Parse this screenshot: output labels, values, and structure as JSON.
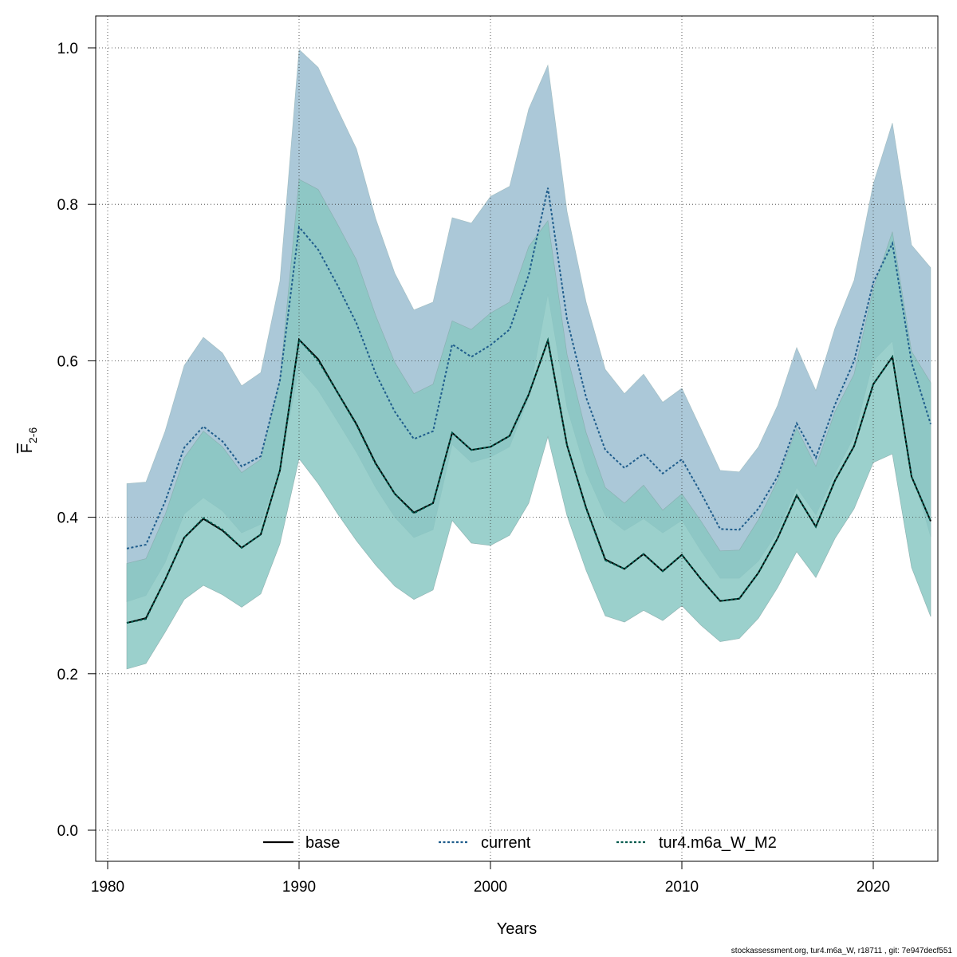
{
  "chart_data": {
    "type": "line",
    "title": "",
    "xlabel": "Years",
    "ylabel_main": "F",
    "ylabel_sub": "2-6",
    "xlim": [
      1980,
      2024
    ],
    "ylim": [
      0.0,
      1.0
    ],
    "x_ticks": [
      1980,
      1990,
      2000,
      2010,
      2020
    ],
    "x_tick_labels": [
      "1980",
      "1990",
      "2000",
      "2010",
      "2020"
    ],
    "y_ticks": [
      0.0,
      0.2,
      0.4,
      0.6,
      0.8,
      1.0
    ],
    "y_tick_labels": [
      "0.0",
      "0.2",
      "0.4",
      "0.6",
      "0.8",
      "1.0"
    ],
    "grid": true,
    "legend_position": "bottom",
    "years": [
      1981,
      1982,
      1983,
      1984,
      1985,
      1986,
      1987,
      1988,
      1989,
      1990,
      1991,
      1992,
      1993,
      1994,
      1995,
      1996,
      1997,
      1998,
      1999,
      2000,
      2001,
      2002,
      2003,
      2004,
      2005,
      2006,
      2007,
      2008,
      2009,
      2010,
      2011,
      2012,
      2013,
      2014,
      2015,
      2016,
      2017,
      2018,
      2019,
      2020,
      2021,
      2022,
      2023
    ],
    "series": [
      {
        "name": "base",
        "color": "#000000",
        "dash": "solid",
        "band_color": "#a6cdd8",
        "values": [
          0.265,
          0.271,
          0.32,
          0.374,
          0.398,
          0.383,
          0.361,
          0.378,
          0.46,
          0.627,
          0.602,
          0.56,
          0.519,
          0.469,
          0.43,
          0.406,
          0.418,
          0.508,
          0.486,
          0.49,
          0.504,
          0.557,
          0.626,
          0.492,
          0.412,
          0.346,
          0.334,
          0.353,
          0.331,
          0.352,
          0.321,
          0.293,
          0.296,
          0.329,
          0.373,
          0.428,
          0.388,
          0.447,
          0.491,
          0.57,
          0.605,
          0.452,
          0.395
        ],
        "lower": [
          0.206,
          0.213,
          0.253,
          0.295,
          0.313,
          0.301,
          0.285,
          0.302,
          0.366,
          0.475,
          0.443,
          0.405,
          0.37,
          0.339,
          0.312,
          0.295,
          0.307,
          0.396,
          0.367,
          0.364,
          0.377,
          0.418,
          0.503,
          0.402,
          0.332,
          0.274,
          0.266,
          0.281,
          0.268,
          0.287,
          0.262,
          0.241,
          0.245,
          0.271,
          0.31,
          0.356,
          0.323,
          0.373,
          0.411,
          0.47,
          0.481,
          0.336,
          0.273
        ],
        "upper": [
          0.341,
          0.347,
          0.403,
          0.476,
          0.51,
          0.49,
          0.457,
          0.474,
          0.575,
          0.832,
          0.819,
          0.775,
          0.729,
          0.658,
          0.598,
          0.558,
          0.57,
          0.651,
          0.64,
          0.661,
          0.675,
          0.746,
          0.779,
          0.608,
          0.508,
          0.438,
          0.418,
          0.441,
          0.409,
          0.43,
          0.395,
          0.357,
          0.358,
          0.397,
          0.447,
          0.514,
          0.465,
          0.535,
          0.583,
          0.692,
          0.765,
          0.612,
          0.572
        ]
      },
      {
        "name": "current",
        "color": "#1f5d8c",
        "dash": "dotted",
        "band_color": "#a6c5d6",
        "values": [
          0.36,
          0.365,
          0.42,
          0.489,
          0.516,
          0.497,
          0.465,
          0.478,
          0.575,
          0.771,
          0.742,
          0.697,
          0.648,
          0.584,
          0.535,
          0.5,
          0.51,
          0.621,
          0.605,
          0.62,
          0.64,
          0.71,
          0.821,
          0.653,
          0.553,
          0.486,
          0.463,
          0.481,
          0.456,
          0.474,
          0.431,
          0.385,
          0.384,
          0.411,
          0.452,
          0.52,
          0.476,
          0.544,
          0.6,
          0.7,
          0.75,
          0.598,
          0.519
        ],
        "lower": [
          0.292,
          0.3,
          0.342,
          0.404,
          0.425,
          0.408,
          0.38,
          0.391,
          0.465,
          0.59,
          0.562,
          0.523,
          0.483,
          0.438,
          0.4,
          0.374,
          0.384,
          0.493,
          0.47,
          0.477,
          0.49,
          0.553,
          0.685,
          0.54,
          0.457,
          0.402,
          0.383,
          0.398,
          0.38,
          0.396,
          0.357,
          0.322,
          0.322,
          0.344,
          0.381,
          0.438,
          0.403,
          0.456,
          0.503,
          0.6,
          0.625,
          0.46,
          0.375
        ],
        "upper": [
          0.443,
          0.445,
          0.51,
          0.594,
          0.63,
          0.61,
          0.568,
          0.585,
          0.702,
          0.998,
          0.975,
          0.922,
          0.871,
          0.782,
          0.712,
          0.665,
          0.675,
          0.783,
          0.776,
          0.81,
          0.823,
          0.922,
          0.978,
          0.791,
          0.675,
          0.589,
          0.558,
          0.583,
          0.547,
          0.565,
          0.513,
          0.46,
          0.458,
          0.49,
          0.543,
          0.617,
          0.562,
          0.642,
          0.703,
          0.826,
          0.904,
          0.748,
          0.719
        ]
      },
      {
        "name": "tur4.m6a_W_M2",
        "color": "#00594c",
        "dash": "dotted",
        "band_color": "#7fc5bb",
        "values": [
          0.265,
          0.27,
          0.32,
          0.374,
          0.399,
          0.384,
          0.361,
          0.378,
          0.46,
          0.627,
          0.6,
          0.56,
          0.518,
          0.468,
          0.43,
          0.405,
          0.418,
          0.508,
          0.486,
          0.49,
          0.504,
          0.557,
          0.626,
          0.492,
          0.411,
          0.345,
          0.334,
          0.353,
          0.331,
          0.352,
          0.321,
          0.293,
          0.296,
          0.329,
          0.373,
          0.428,
          0.388,
          0.447,
          0.491,
          0.57,
          0.605,
          0.452,
          0.395
        ],
        "lower": [
          0.206,
          0.213,
          0.253,
          0.295,
          0.313,
          0.301,
          0.285,
          0.302,
          0.366,
          0.475,
          0.443,
          0.405,
          0.37,
          0.339,
          0.312,
          0.295,
          0.307,
          0.396,
          0.367,
          0.364,
          0.377,
          0.418,
          0.503,
          0.402,
          0.332,
          0.274,
          0.266,
          0.281,
          0.268,
          0.287,
          0.262,
          0.241,
          0.245,
          0.271,
          0.31,
          0.356,
          0.323,
          0.373,
          0.411,
          0.47,
          0.481,
          0.336,
          0.273
        ],
        "upper": [
          0.341,
          0.347,
          0.403,
          0.476,
          0.51,
          0.49,
          0.457,
          0.474,
          0.575,
          0.832,
          0.819,
          0.775,
          0.729,
          0.658,
          0.598,
          0.558,
          0.57,
          0.651,
          0.64,
          0.661,
          0.675,
          0.746,
          0.779,
          0.608,
          0.508,
          0.438,
          0.418,
          0.441,
          0.409,
          0.43,
          0.395,
          0.357,
          0.358,
          0.397,
          0.447,
          0.514,
          0.465,
          0.535,
          0.583,
          0.692,
          0.765,
          0.612,
          0.572
        ]
      }
    ]
  },
  "footer": "stockassessment.org, tur4.m6a_W, r18711 , git: 7e947decf551"
}
